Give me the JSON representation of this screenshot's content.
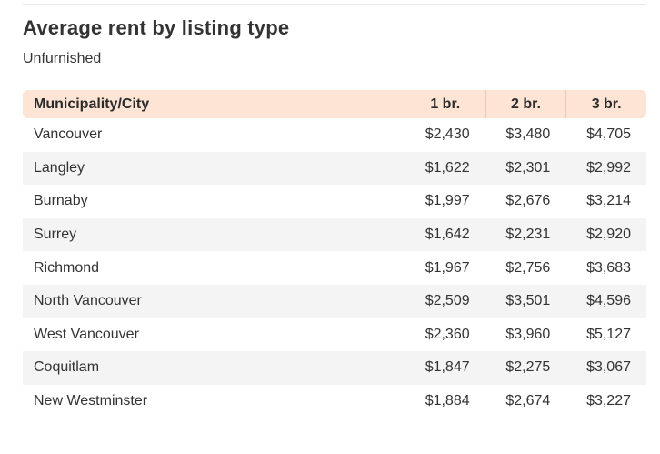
{
  "title": "Average rent by listing type",
  "subtitle": "Unfurnished",
  "table": {
    "headers": [
      "Municipality/City",
      "1 br.",
      "2 br.",
      "3 br."
    ],
    "rows": [
      [
        "Vancouver",
        "$2,430",
        "$3,480",
        "$4,705"
      ],
      [
        "Langley",
        "$1,622",
        "$2,301",
        "$2,992"
      ],
      [
        "Burnaby",
        "$1,997",
        "$2,676",
        "$3,214"
      ],
      [
        "Surrey",
        "$1,642",
        "$2,231",
        "$2,920"
      ],
      [
        "Richmond",
        "$1,967",
        "$2,756",
        "$3,683"
      ],
      [
        "North Vancouver",
        "$2,509",
        "$3,501",
        "$4,596"
      ],
      [
        "West Vancouver",
        "$2,360",
        "$3,960",
        "$5,127"
      ],
      [
        "Coquitlam",
        "$1,847",
        "$2,275",
        "$3,067"
      ],
      [
        "New Westminster",
        "$1,884",
        "$2,674",
        "$3,227"
      ]
    ]
  },
  "colors": {
    "header_background": "#fde4d5",
    "alt_row_background": "#f4f4f4"
  }
}
